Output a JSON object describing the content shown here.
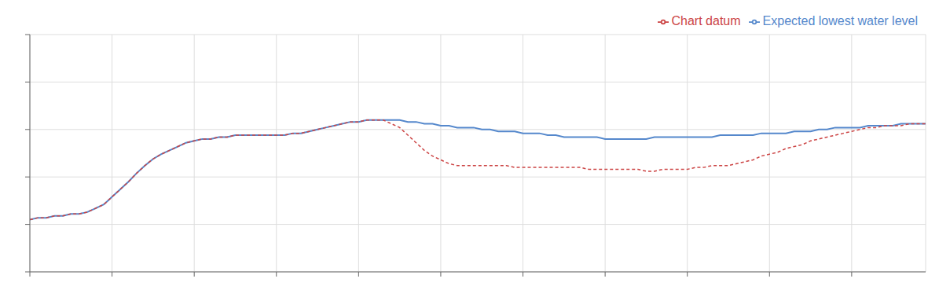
{
  "chart_data": {
    "type": "line",
    "x": [
      0,
      1,
      2,
      3,
      4,
      5,
      6,
      7,
      8,
      9,
      10,
      11,
      12,
      13,
      14,
      15,
      16,
      17,
      18,
      19,
      20,
      21,
      22,
      23,
      24,
      25,
      26,
      27,
      28,
      29,
      30,
      31,
      32,
      33,
      34,
      35,
      36,
      37,
      38,
      39,
      40,
      41,
      42,
      43,
      44,
      45,
      46,
      47,
      48,
      49,
      50,
      51,
      52,
      53,
      54,
      55,
      56,
      57,
      58,
      59,
      60,
      61,
      62,
      63,
      64,
      65,
      66,
      67,
      68,
      69,
      70,
      71,
      72,
      73,
      74,
      75,
      76,
      77,
      78,
      79,
      80,
      81,
      82,
      83,
      84,
      85,
      86,
      87,
      88,
      89,
      90,
      91,
      92,
      93,
      94,
      95,
      96,
      97,
      98,
      99,
      100,
      101,
      102,
      103,
      104,
      105,
      106,
      107,
      108,
      109
    ],
    "series": [
      {
        "name": "Expected lowest water level",
        "color": "#5588cc",
        "line_style": "solid",
        "values": [
          55,
          57,
          57,
          59,
          59,
          61,
          61,
          63,
          67,
          71,
          79,
          87,
          95,
          104,
          112,
          119,
          124,
          128,
          132,
          136,
          138,
          140,
          140,
          142,
          142,
          144,
          144,
          144,
          144,
          144,
          144,
          144,
          146,
          146,
          148,
          150,
          152,
          154,
          156,
          158,
          158,
          160,
          160,
          160,
          160,
          160,
          158,
          158,
          156,
          156,
          154,
          154,
          152,
          152,
          152,
          150,
          150,
          148,
          148,
          148,
          146,
          146,
          146,
          144,
          144,
          142,
          142,
          142,
          142,
          142,
          140,
          140,
          140,
          140,
          140,
          140,
          142,
          142,
          142,
          142,
          142,
          142,
          142,
          142,
          144,
          144,
          144,
          144,
          144,
          146,
          146,
          146,
          146,
          148,
          148,
          148,
          150,
          150,
          152,
          152,
          152,
          152,
          154,
          154,
          154,
          154,
          156,
          156,
          156,
          156
        ]
      },
      {
        "name": "Chart datum",
        "color": "#cc4444",
        "line_style": "dashed",
        "values": [
          55,
          57,
          57,
          59,
          59,
          61,
          61,
          63,
          67,
          71,
          79,
          87,
          95,
          104,
          112,
          119,
          124,
          128,
          132,
          136,
          138,
          140,
          140,
          142,
          142,
          144,
          144,
          144,
          144,
          144,
          144,
          144,
          146,
          146,
          148,
          150,
          152,
          154,
          156,
          158,
          158,
          160,
          160,
          160,
          156,
          152,
          144,
          136,
          128,
          122,
          118,
          114,
          112,
          112,
          112,
          112,
          112,
          112,
          112,
          110,
          110,
          110,
          110,
          110,
          110,
          110,
          110,
          110,
          108,
          108,
          108,
          108,
          108,
          108,
          108,
          106,
          106,
          108,
          108,
          108,
          108,
          110,
          110,
          112,
          112,
          112,
          114,
          116,
          118,
          122,
          124,
          126,
          130,
          132,
          134,
          138,
          140,
          142,
          144,
          146,
          148,
          150,
          152,
          152,
          154,
          154,
          154,
          156,
          156,
          156
        ]
      }
    ],
    "xlim": [
      0,
      109
    ],
    "ylim": [
      0,
      250
    ],
    "xticks": [
      0,
      10,
      20,
      30,
      40,
      50,
      60,
      70,
      80,
      90,
      100
    ],
    "yticks": [
      0,
      50,
      100,
      150,
      200,
      250
    ],
    "grid": true,
    "legend": "upper right",
    "tick_labels": false
  }
}
